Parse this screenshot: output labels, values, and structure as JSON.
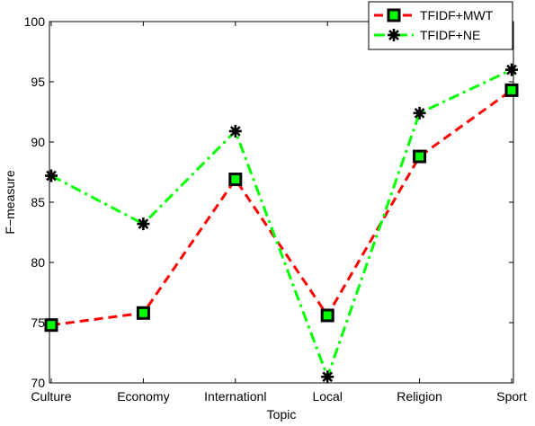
{
  "chart_data": {
    "type": "line",
    "xlabel": "Topic",
    "ylabel": "F−measure",
    "categories": [
      "Culture",
      "Economy",
      "Internationl",
      "Local",
      "Religion",
      "Sport"
    ],
    "ylim": [
      70,
      100
    ],
    "yticks": [
      70,
      75,
      80,
      85,
      90,
      95,
      100
    ],
    "grid": false,
    "legend_position": "top-right",
    "series": [
      {
        "name": "TFIDF+MWT",
        "values": [
          74.8,
          75.8,
          86.9,
          75.6,
          88.8,
          94.3
        ],
        "line_color": "#ff0000",
        "line_style": "dashed",
        "marker": "square",
        "marker_fill": "#00ff00",
        "marker_edge": "#000000"
      },
      {
        "name": "TFIDF+NE",
        "values": [
          87.2,
          83.2,
          90.9,
          70.5,
          92.4,
          96.0
        ],
        "line_color": "#00ff00",
        "line_style": "dash-dot",
        "marker": "asterisk",
        "marker_edge": "#000000"
      }
    ]
  }
}
